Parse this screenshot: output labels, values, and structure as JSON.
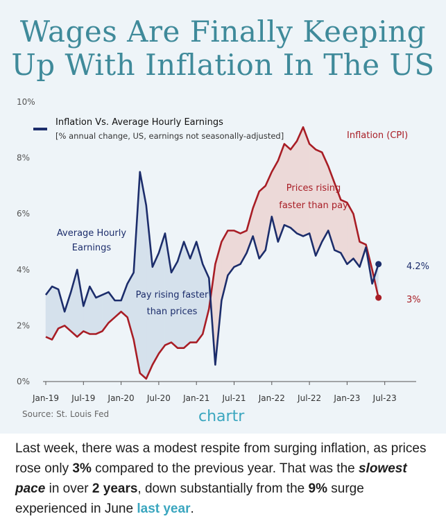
{
  "header": {
    "title_line1": "Wages Are Finally Keeping",
    "title_line2": "Up With Inflation In The US"
  },
  "chart_data": {
    "type": "line",
    "title": "Inflation Vs. Average Hourly Earnings",
    "subtitle": "[% annual change, US, earnings not seasonally-adjusted]",
    "x_tick_labels": [
      "Jan-19",
      "Jul-19",
      "Jan-20",
      "Jul-20",
      "Jan-21",
      "Jul-21",
      "Jan-22",
      "Jul-22",
      "Jan-23",
      "Jul-23"
    ],
    "y_tick_labels": [
      "0%",
      "2%",
      "4%",
      "6%",
      "8%",
      "10%"
    ],
    "ylim": [
      0,
      10
    ],
    "grid": false,
    "x": [
      "2019-01",
      "2019-02",
      "2019-03",
      "2019-04",
      "2019-05",
      "2019-06",
      "2019-07",
      "2019-08",
      "2019-09",
      "2019-10",
      "2019-11",
      "2019-12",
      "2020-01",
      "2020-02",
      "2020-03",
      "2020-04",
      "2020-05",
      "2020-06",
      "2020-07",
      "2020-08",
      "2020-09",
      "2020-10",
      "2020-11",
      "2020-12",
      "2021-01",
      "2021-02",
      "2021-03",
      "2021-04",
      "2021-05",
      "2021-06",
      "2021-07",
      "2021-08",
      "2021-09",
      "2021-10",
      "2021-11",
      "2021-12",
      "2022-01",
      "2022-02",
      "2022-03",
      "2022-04",
      "2022-05",
      "2022-06",
      "2022-07",
      "2022-08",
      "2022-09",
      "2022-10",
      "2022-11",
      "2022-12",
      "2023-01",
      "2023-02",
      "2023-03",
      "2023-04",
      "2023-05",
      "2023-06"
    ],
    "series": [
      {
        "name": "Average Hourly Earnings",
        "color": "#1c2d6b",
        "values": [
          3.1,
          3.4,
          3.3,
          2.5,
          3.2,
          4.0,
          2.7,
          3.4,
          3.0,
          3.1,
          3.2,
          2.9,
          2.9,
          3.5,
          3.9,
          7.5,
          6.3,
          4.1,
          4.6,
          5.3,
          3.9,
          4.3,
          5.0,
          4.4,
          5.0,
          4.2,
          3.7,
          0.6,
          2.9,
          3.8,
          4.1,
          4.2,
          4.6,
          5.2,
          4.4,
          4.7,
          5.9,
          5.0,
          5.6,
          5.5,
          5.3,
          5.2,
          5.3,
          4.5,
          5.0,
          5.4,
          4.7,
          4.6,
          4.2,
          4.4,
          4.1,
          4.8,
          3.5,
          4.2
        ]
      },
      {
        "name": "Inflation (CPI)",
        "color": "#a81d25",
        "values": [
          1.6,
          1.5,
          1.9,
          2.0,
          1.8,
          1.6,
          1.8,
          1.7,
          1.7,
          1.8,
          2.1,
          2.3,
          2.5,
          2.3,
          1.5,
          0.3,
          0.1,
          0.6,
          1.0,
          1.3,
          1.4,
          1.2,
          1.2,
          1.4,
          1.4,
          1.7,
          2.6,
          4.2,
          5.0,
          5.4,
          5.4,
          5.3,
          5.4,
          6.2,
          6.8,
          7.0,
          7.5,
          7.9,
          8.5,
          8.3,
          8.6,
          9.1,
          8.5,
          8.3,
          8.2,
          7.7,
          7.1,
          6.5,
          6.4,
          6.0,
          5.0,
          4.9,
          4.0,
          3.0
        ]
      }
    ],
    "end_labels": [
      "4.2%",
      "3%"
    ],
    "annotations": {
      "earnings_label": [
        "Average Hourly",
        "Earnings"
      ],
      "cpi_label": "Inflation (CPI)",
      "prices_gap": [
        "Prices rising",
        "faster than pay"
      ],
      "pay_gap": [
        "Pay rising faster",
        "than prices"
      ]
    },
    "source": "Source: St. Louis Fed",
    "brand": "chartr"
  },
  "article": {
    "p1": "Last week, there was a modest respite from surging inflation, as prices rose only ",
    "b1": "3%",
    "p2": " compared to the previous year. That was the ",
    "b2": "slowest pace",
    "p3": " in over ",
    "b3": "2 years",
    "p4": ", down substantially from the ",
    "b4": "9%",
    "p5": " surge experienced in June ",
    "link": "last year",
    "p6": "."
  },
  "colors": {
    "background": "#eef4f8",
    "title": "#3f8a9a",
    "earnings": "#1c2d6b",
    "cpi": "#a81d25",
    "pay_fill": "#d5e1ec",
    "price_fill": "#ecd9d8",
    "brand": "#3aa6bf"
  }
}
